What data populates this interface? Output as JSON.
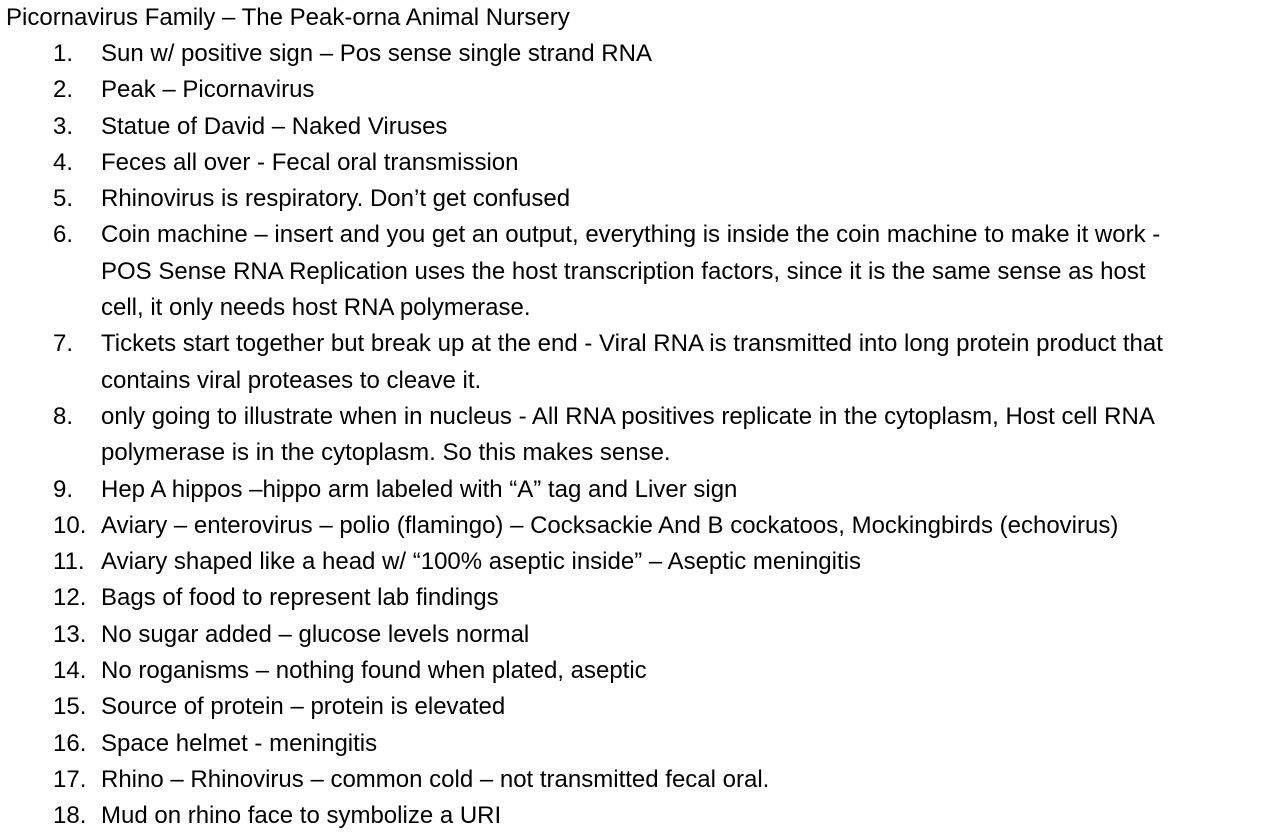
{
  "document": {
    "title": "Picornavirus Family – The Peak-orna Animal Nursery",
    "items": [
      {
        "num": "1.",
        "text": "Sun w/ positive sign – Pos sense single strand RNA"
      },
      {
        "num": "2.",
        "text": "Peak – Picornavirus"
      },
      {
        "num": "3.",
        "text": "Statue of David – Naked Viruses"
      },
      {
        "num": "4.",
        "text": "Feces all over - Fecal oral transmission"
      },
      {
        "num": "5.",
        "text": "Rhinovirus is respiratory. Don’t get confused"
      },
      {
        "num": "6.",
        "text": "Coin machine – insert and you get an output, everything is inside the coin machine to make it work - POS Sense RNA Replication uses the host transcription factors, since it is the same sense as host cell, it only needs host RNA polymerase."
      },
      {
        "num": "7.",
        "text": "Tickets start together but break up at the end - Viral RNA is transmitted into long protein product that contains viral proteases to cleave it."
      },
      {
        "num": "8.",
        "text": "only going to illustrate when in nucleus - All RNA positives replicate in the cytoplasm, Host cell RNA polymerase is in the cytoplasm. So this makes sense."
      },
      {
        "num": "9.",
        "text": "Hep A hippos –hippo arm labeled with “A” tag and Liver sign"
      },
      {
        "num": "10.",
        "text": "Aviary – enterovirus – polio (flamingo) – Cocksackie And B cockatoos, Mockingbirds (echovirus)"
      },
      {
        "num": "11.",
        "text": "Aviary shaped like a head w/ “100% aseptic inside” – Aseptic meningitis"
      },
      {
        "num": "12.",
        "text": "Bags of food to represent lab findings"
      },
      {
        "num": "13.",
        "text": "No sugar added – glucose levels normal"
      },
      {
        "num": "14.",
        "text": "No roganisms – nothing found when plated, aseptic"
      },
      {
        "num": "15.",
        "text": "Source of protein – protein is elevated"
      },
      {
        "num": "16.",
        "text": "Space helmet - meningitis"
      },
      {
        "num": "17.",
        "text": "Rhino – Rhinovirus – common cold – not transmitted fecal oral."
      },
      {
        "num": "18.",
        "text": "Mud on rhino face to symbolize a URI"
      }
    ]
  }
}
